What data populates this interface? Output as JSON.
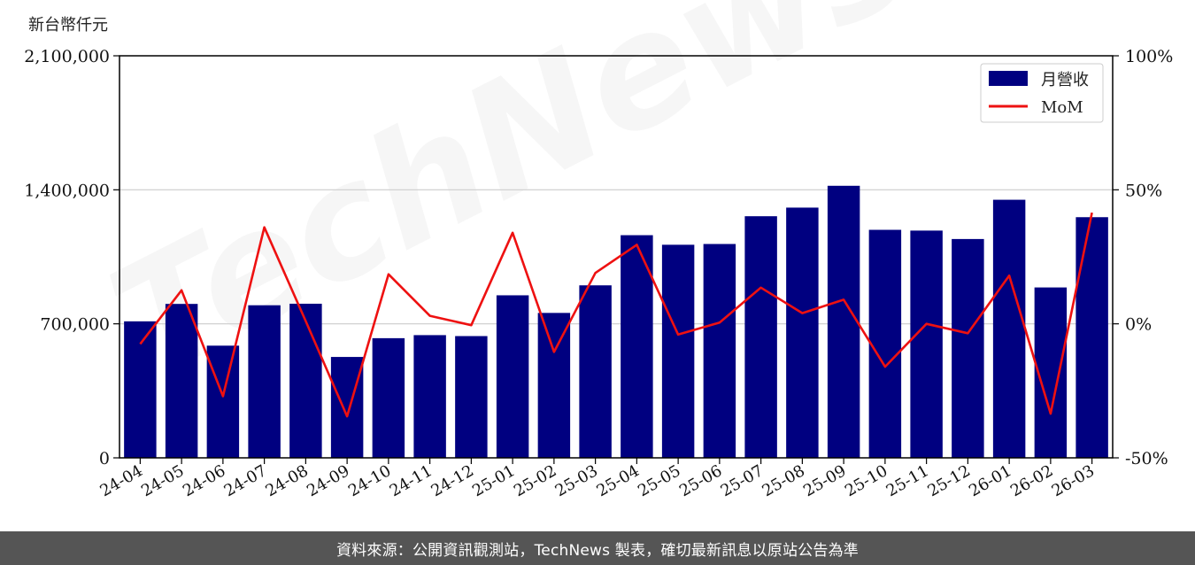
{
  "chart_data": {
    "type": "bar",
    "unit_label": "新台幣仟元",
    "categories": [
      "24-04",
      "24-05",
      "24-06",
      "24-07",
      "24-08",
      "24-09",
      "24-10",
      "24-11",
      "24-12",
      "25-01",
      "25-02",
      "25-03",
      "25-04",
      "25-05",
      "25-06",
      "25-07",
      "25-08",
      "25-09",
      "25-10",
      "25-11",
      "25-12",
      "26-01",
      "26-02",
      "26-03"
    ],
    "series": [
      {
        "name": "月營收",
        "axis": "left",
        "chart_type": "bar",
        "color": "#000080",
        "values": [
          713000,
          804000,
          586000,
          797000,
          805000,
          527000,
          625000,
          641000,
          636000,
          849000,
          757000,
          901000,
          1163000,
          1113000,
          1117000,
          1262000,
          1307000,
          1421000,
          1191000,
          1187000,
          1143000,
          1348000,
          890000,
          1257000
        ]
      },
      {
        "name": "MoM",
        "axis": "right",
        "chart_type": "line",
        "color": "#ee1111",
        "values": [
          -7.5,
          12.5,
          -27,
          36,
          1,
          -34.5,
          18.5,
          3,
          -0.5,
          34,
          -10.5,
          19,
          29.5,
          -4,
          0.5,
          13.5,
          4,
          9,
          -16,
          0,
          -3.5,
          18,
          -33.5,
          41.5
        ]
      }
    ],
    "y_left": {
      "lim": [
        0,
        2100000
      ],
      "ticks": [
        0,
        700000,
        1400000,
        2100000
      ],
      "tick_labels": [
        "0",
        "700,000",
        "1,400,000",
        "2,100,000"
      ]
    },
    "y_right": {
      "lim": [
        -50,
        100
      ],
      "ticks": [
        -50,
        0,
        50,
        100
      ],
      "tick_labels": [
        "-50%",
        "0%",
        "50%",
        "100%"
      ]
    },
    "grid": "horizontal",
    "legend_position": "top-right"
  },
  "watermark": "TechNews",
  "footer": {
    "text": "資料來源：公開資訊觀測站，TechNews 製表，確切最新訊息以原站公告為準"
  }
}
